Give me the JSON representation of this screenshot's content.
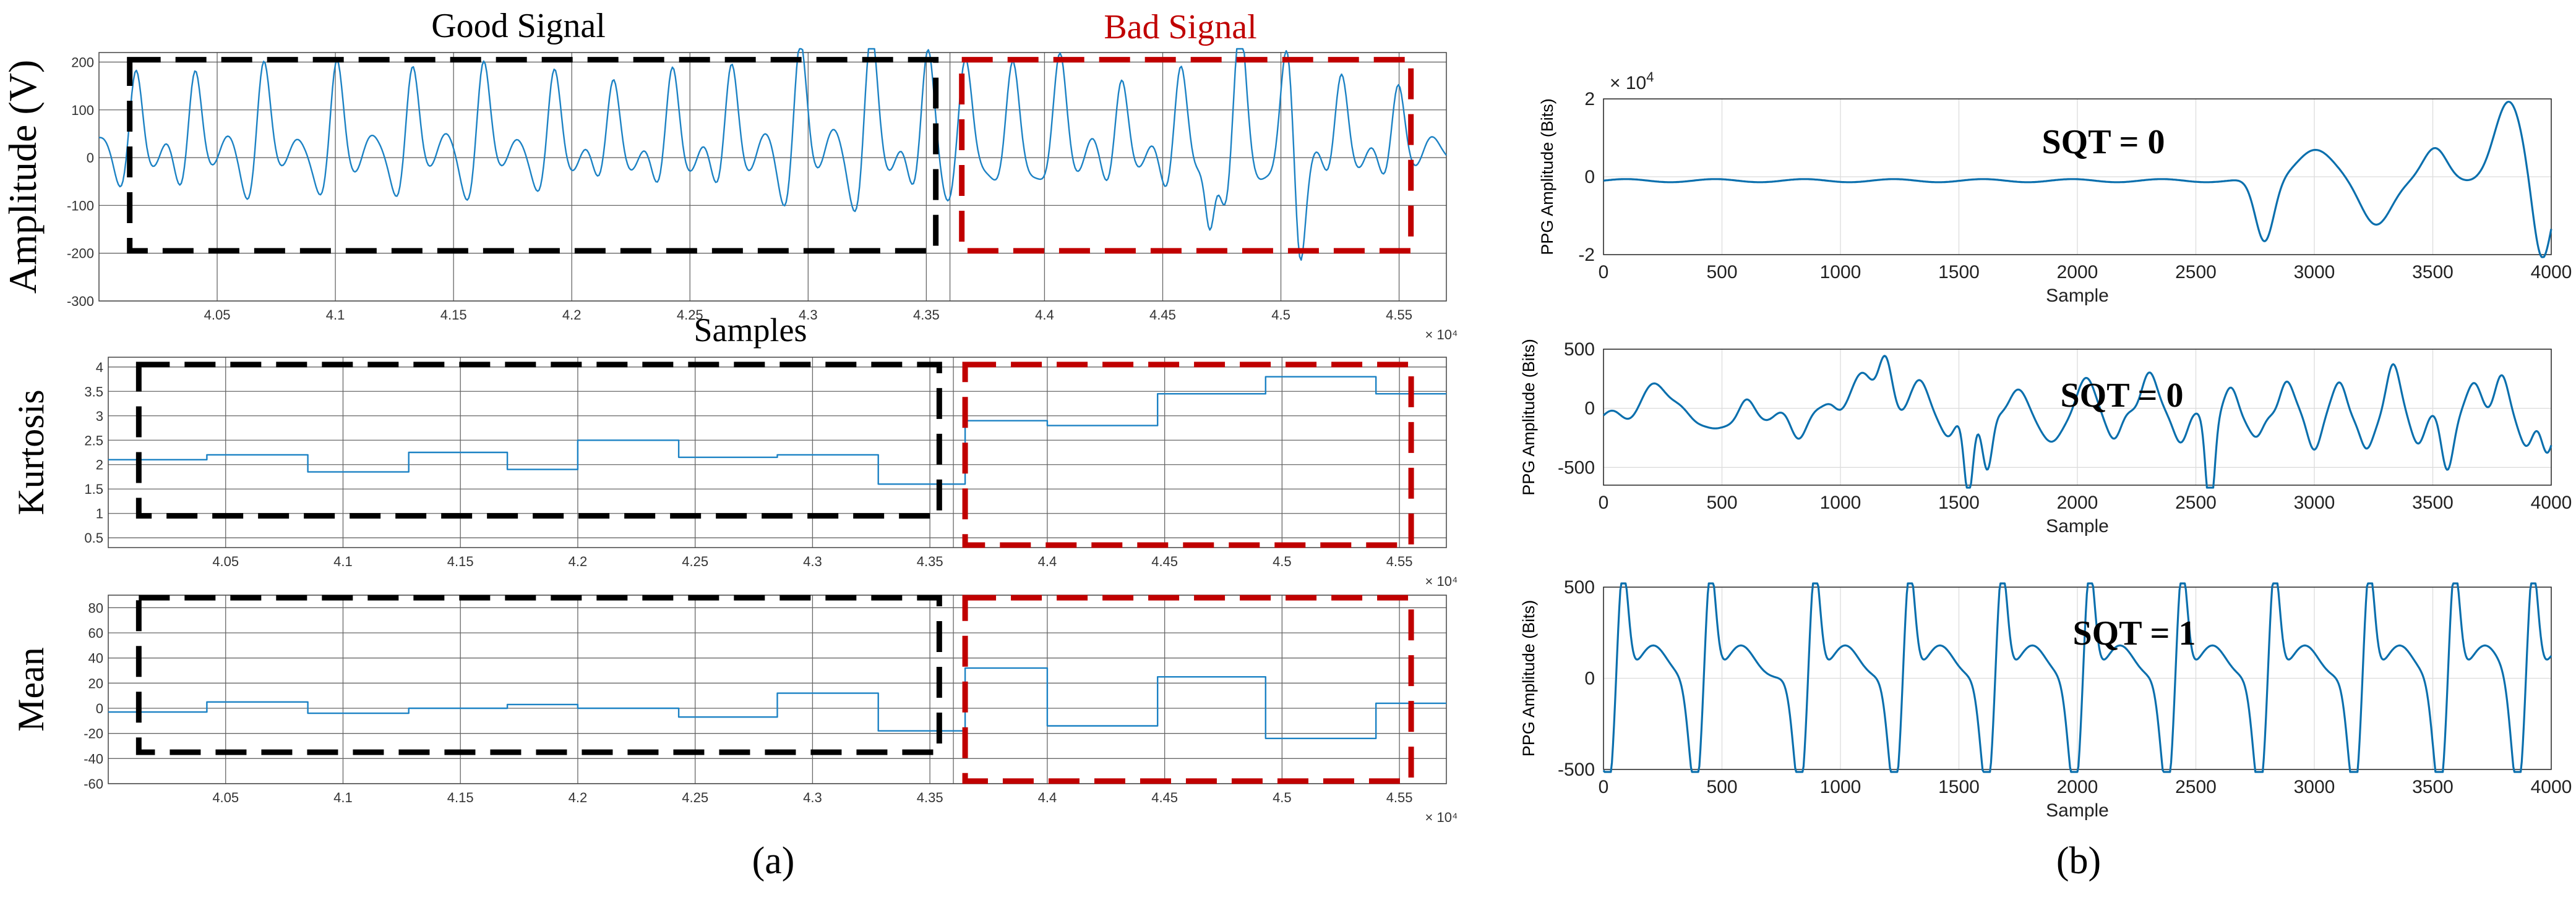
{
  "figure": {
    "good_signal_label": "Good Signal",
    "bad_signal_label": "Bad Signal",
    "samples_label": "Samples",
    "caption_a": "(a)",
    "caption_b": "(b)",
    "colors": {
      "good_box": "#000000",
      "bad_box": "#c00000",
      "series": "#0a6fad"
    }
  },
  "chart_data": [
    {
      "id": "a1",
      "type": "line",
      "panel": "(a)",
      "ylabel": "Amplitude (V)",
      "xlabel": "Samples",
      "x_scale_label": "× 10⁴",
      "xlim": [
        40000,
        45700
      ],
      "ylim": [
        -300,
        220
      ],
      "x_ticks": [
        40500,
        41000,
        41500,
        42000,
        42500,
        43000,
        43500,
        44000,
        44500,
        45000,
        45500
      ],
      "x_tick_labels": [
        "4.05",
        "4.1",
        "4.15",
        "4.2",
        "4.25",
        "4.3",
        "4.35",
        "4.4",
        "4.45",
        "4.5",
        "4.55"
      ],
      "y_ticks": [
        -300,
        -200,
        -100,
        0,
        100,
        200
      ],
      "y_tick_labels": [
        "-300",
        "-200",
        "-100",
        "0",
        "100",
        "200"
      ],
      "grid": true,
      "series": [
        {
          "name": "signal",
          "signal": "ppg_voltage"
        }
      ],
      "good_region": [
        40130,
        43540
      ],
      "bad_region": [
        43650,
        45550
      ],
      "good_box_y": [
        -195,
        205
      ],
      "bad_box_y": [
        -195,
        205
      ]
    },
    {
      "id": "a2",
      "type": "line",
      "panel": "(a)",
      "ylabel": "Kurtosis",
      "x_scale_label": "× 10⁴",
      "xlim": [
        40000,
        45700
      ],
      "ylim": [
        0.3,
        4.2
      ],
      "x_ticks": [
        40500,
        41000,
        41500,
        42000,
        42500,
        43000,
        43500,
        44000,
        44500,
        45000,
        45500
      ],
      "x_tick_labels": [
        "4.05",
        "4.1",
        "4.15",
        "4.2",
        "4.25",
        "4.3",
        "4.35",
        "4.4",
        "4.45",
        "4.5",
        "4.55"
      ],
      "y_ticks": [
        0.5,
        1,
        1.5,
        2,
        2.5,
        3,
        3.5,
        4
      ],
      "y_tick_labels": [
        "0.5",
        "1",
        "1.5",
        "2",
        "2.5",
        "3",
        "3.5",
        "4"
      ],
      "grid": true,
      "series": [
        {
          "name": "kurtosis",
          "step": true,
          "x": [
            40000,
            40420,
            40850,
            41280,
            41700,
            42000,
            42430,
            42850,
            43280,
            43650,
            44000,
            44470,
            44930,
            45400,
            45700
          ],
          "y": [
            2.1,
            2.2,
            1.85,
            2.25,
            1.9,
            2.5,
            2.15,
            2.2,
            1.6,
            2.9,
            2.8,
            3.45,
            3.8,
            3.45,
            3.45
          ]
        }
      ],
      "good_region": [
        40130,
        43540
      ],
      "bad_region": [
        43650,
        45550
      ],
      "good_box_y": [
        0.95,
        4.05
      ],
      "bad_box_y": [
        0.35,
        4.05
      ]
    },
    {
      "id": "a3",
      "type": "line",
      "panel": "(a)",
      "ylabel": "Mean",
      "x_scale_label": "× 10⁴",
      "xlim": [
        40000,
        45700
      ],
      "ylim": [
        -60,
        90
      ],
      "x_ticks": [
        40500,
        41000,
        41500,
        42000,
        42500,
        43000,
        43500,
        44000,
        44500,
        45000,
        45500
      ],
      "x_tick_labels": [
        "4.05",
        "4.1",
        "4.15",
        "4.2",
        "4.25",
        "4.3",
        "4.35",
        "4.4",
        "4.45",
        "4.5",
        "4.55"
      ],
      "y_ticks": [
        -60,
        -40,
        -20,
        0,
        20,
        40,
        60,
        80
      ],
      "y_tick_labels": [
        "-60",
        "-40",
        "-20",
        "0",
        "20",
        "40",
        "60",
        "80"
      ],
      "grid": true,
      "series": [
        {
          "name": "mean",
          "step": true,
          "x": [
            40000,
            40420,
            40850,
            41280,
            41700,
            42000,
            42430,
            42850,
            43280,
            43650,
            44000,
            44470,
            44930,
            45400,
            45700
          ],
          "y": [
            -3,
            5,
            -4,
            0,
            3,
            0,
            -7,
            12,
            -18,
            32,
            -14,
            25,
            -24,
            4,
            4
          ]
        }
      ],
      "good_region": [
        40130,
        43540
      ],
      "bad_region": [
        43650,
        45550
      ],
      "good_box_y": [
        -35,
        88
      ],
      "bad_box_y": [
        -58,
        88
      ]
    },
    {
      "id": "b1",
      "type": "line",
      "panel": "(b)",
      "ylabel": "PPG Amplitude (Bits)",
      "xlabel": "Sample",
      "y_scale_label": "× 10",
      "y_scale_exponent": "4",
      "annotation": "SQT = 0",
      "xlim": [
        0,
        4000
      ],
      "ylim": [
        -2,
        2
      ],
      "x_ticks": [
        0,
        500,
        1000,
        1500,
        2000,
        2500,
        3000,
        3500,
        4000
      ],
      "x_tick_labels": [
        "0",
        "500",
        "1000",
        "1500",
        "2000",
        "2500",
        "3000",
        "3500",
        "4000"
      ],
      "y_ticks": [
        -2,
        0,
        2
      ],
      "y_tick_labels": [
        "-2",
        "0",
        "2"
      ],
      "grid": true,
      "series": [
        {
          "name": "ppg",
          "signal": "flat_then_artifact"
        }
      ]
    },
    {
      "id": "b2",
      "type": "line",
      "panel": "(b)",
      "ylabel": "PPG Amplitude (Bits)",
      "xlabel": "Sample",
      "annotation": "SQT = 0",
      "xlim": [
        0,
        4000
      ],
      "ylim": [
        -650,
        500
      ],
      "x_ticks": [
        0,
        500,
        1000,
        1500,
        2000,
        2500,
        3000,
        3500,
        4000
      ],
      "x_tick_labels": [
        "0",
        "500",
        "1000",
        "1500",
        "2000",
        "2500",
        "3000",
        "3500",
        "4000"
      ],
      "y_ticks": [
        -500,
        0,
        500
      ],
      "y_tick_labels": [
        "-500",
        "0",
        "500"
      ],
      "grid": true,
      "series": [
        {
          "name": "ppg",
          "signal": "noisy_artifact"
        }
      ]
    },
    {
      "id": "b3",
      "type": "line",
      "panel": "(b)",
      "ylabel": "PPG Amplitude (Bits)",
      "xlabel": "Sample",
      "annotation": "SQT = 1",
      "xlim": [
        0,
        4000
      ],
      "ylim": [
        -500,
        500
      ],
      "x_ticks": [
        0,
        500,
        1000,
        1500,
        2000,
        2500,
        3000,
        3500,
        4000
      ],
      "x_tick_labels": [
        "0",
        "500",
        "1000",
        "1500",
        "2000",
        "2500",
        "3000",
        "3500",
        "4000"
      ],
      "y_ticks": [
        -500,
        0,
        500
      ],
      "y_tick_labels": [
        "-500",
        "0",
        "500"
      ],
      "grid": true,
      "series": [
        {
          "name": "ppg",
          "signal": "clean_periodic"
        }
      ]
    }
  ]
}
